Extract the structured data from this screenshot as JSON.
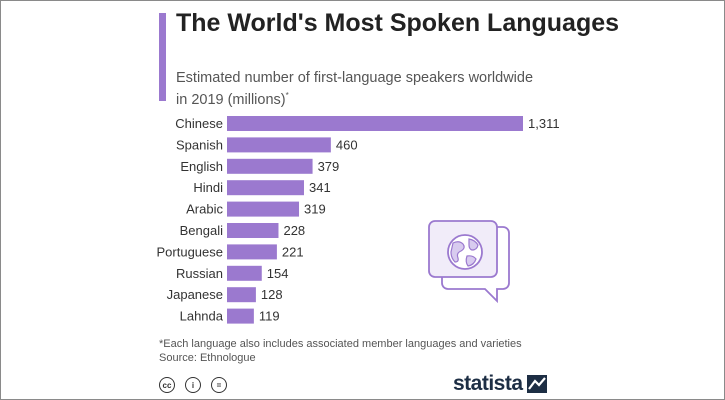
{
  "header": {
    "title": "The World's Most Spoken Languages",
    "subtitle": "Estimated number of first-language speakers worldwide in 2019 (millions)",
    "subtitle_marker": "*"
  },
  "chart_data": {
    "type": "bar",
    "orientation": "horizontal",
    "title": "The World's Most Spoken Languages",
    "subtitle": "Estimated number of first-language speakers worldwide in 2019 (millions)*",
    "categories": [
      "Chinese",
      "Spanish",
      "English",
      "Hindi",
      "Arabic",
      "Bengali",
      "Portuguese",
      "Russian",
      "Japanese",
      "Lahnda"
    ],
    "values": [
      1311,
      460,
      379,
      341,
      319,
      228,
      221,
      154,
      128,
      119
    ],
    "value_labels": [
      "1,311",
      "460",
      "379",
      "341",
      "319",
      "228",
      "221",
      "154",
      "128",
      "119"
    ],
    "xlim": [
      0,
      1311
    ],
    "grid": false,
    "legend": "none",
    "bar_color": "#9b79cf"
  },
  "footer": {
    "note": "*Each language also includes associated member languages and varieties",
    "source": "Source: Ethnologue",
    "license_icons": [
      {
        "name": "cc-icon",
        "glyph": "cc"
      },
      {
        "name": "attribution-icon",
        "glyph": "i"
      },
      {
        "name": "no-derivatives-icon",
        "glyph": "="
      }
    ],
    "brand": "statista"
  },
  "illustration": {
    "icon": "speech-bubble-globe-icon",
    "color": "#9b79cf"
  }
}
